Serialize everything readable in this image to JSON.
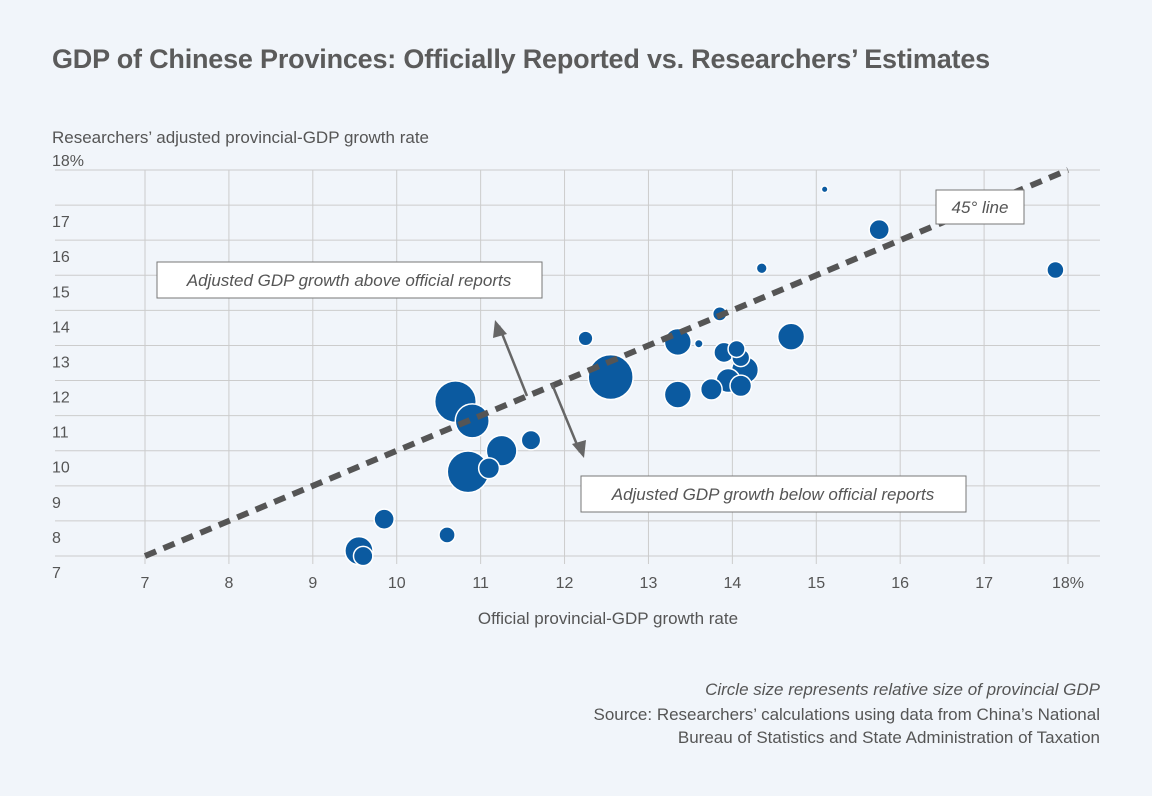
{
  "title": "GDP of Chinese Provinces: Officially Reported vs. Researchers’ Estimates",
  "notes": {
    "circle_size": "Circle size represents relative size of provincial GDP",
    "source_line1": "Source: Researchers’ calculations using data from China’s National",
    "source_line2": "Bureau of Statistics and State Administration of Taxation"
  },
  "colors": {
    "bubble": "#0b5aa0",
    "grid": "#cccccc",
    "diagonal": "#555555",
    "background": "#f1f5fa"
  },
  "chart_data": {
    "type": "scatter",
    "title": "GDP of Chinese Provinces: Officially Reported vs. Researchers’ Estimates",
    "xlabel": "Official provincial-GDP growth rate",
    "ylabel": "Researchers’ adjusted provincial-GDP growth rate",
    "xlim": [
      7,
      18
    ],
    "ylim": [
      7,
      18
    ],
    "grid": true,
    "x_ticks": [
      "7",
      "8",
      "9",
      "10",
      "11",
      "12",
      "13",
      "14",
      "15",
      "16",
      "17",
      "18%"
    ],
    "y_ticks": [
      "7",
      "8",
      "9",
      "10",
      "11",
      "12",
      "13",
      "14",
      "15",
      "16",
      "17",
      "18%"
    ],
    "reference_line": {
      "label": "45° line",
      "from": [
        7,
        7
      ],
      "to": [
        18,
        18
      ]
    },
    "annotations": [
      "Adjusted GDP growth above official reports",
      "Adjusted GDP growth below official reports"
    ],
    "size_note": "Circle size represents relative size of provincial GDP",
    "points": [
      {
        "x": 15.1,
        "y": 17.45,
        "size": 0.3
      },
      {
        "x": 15.75,
        "y": 16.3,
        "size": 2.8
      },
      {
        "x": 17.85,
        "y": 15.15,
        "size": 2.0
      },
      {
        "x": 14.35,
        "y": 15.2,
        "size": 0.8
      },
      {
        "x": 13.85,
        "y": 13.9,
        "size": 1.4
      },
      {
        "x": 14.7,
        "y": 13.25,
        "size": 5.0
      },
      {
        "x": 13.35,
        "y": 13.1,
        "size": 5.0
      },
      {
        "x": 13.6,
        "y": 13.05,
        "size": 0.5
      },
      {
        "x": 12.25,
        "y": 13.2,
        "size": 1.5
      },
      {
        "x": 13.9,
        "y": 12.8,
        "size": 2.8
      },
      {
        "x": 14.05,
        "y": 12.9,
        "size": 2.0
      },
      {
        "x": 14.1,
        "y": 12.65,
        "size": 2.2
      },
      {
        "x": 14.15,
        "y": 12.3,
        "size": 5.0
      },
      {
        "x": 13.95,
        "y": 12.0,
        "size": 4.0
      },
      {
        "x": 14.1,
        "y": 11.85,
        "size": 3.2
      },
      {
        "x": 13.75,
        "y": 11.75,
        "size": 3.2
      },
      {
        "x": 13.35,
        "y": 11.6,
        "size": 5.0
      },
      {
        "x": 12.55,
        "y": 12.1,
        "size": 14.0
      },
      {
        "x": 11.6,
        "y": 10.3,
        "size": 2.6
      },
      {
        "x": 10.7,
        "y": 11.4,
        "size": 12.0
      },
      {
        "x": 10.9,
        "y": 10.85,
        "size": 8.0
      },
      {
        "x": 11.25,
        "y": 10.0,
        "size": 6.5
      },
      {
        "x": 10.85,
        "y": 9.4,
        "size": 12.0
      },
      {
        "x": 11.1,
        "y": 9.5,
        "size": 3.0
      },
      {
        "x": 9.85,
        "y": 8.05,
        "size": 2.8
      },
      {
        "x": 10.6,
        "y": 7.6,
        "size": 1.8
      },
      {
        "x": 9.55,
        "y": 7.15,
        "size": 5.5
      },
      {
        "x": 9.6,
        "y": 7.0,
        "size": 2.6
      }
    ]
  }
}
